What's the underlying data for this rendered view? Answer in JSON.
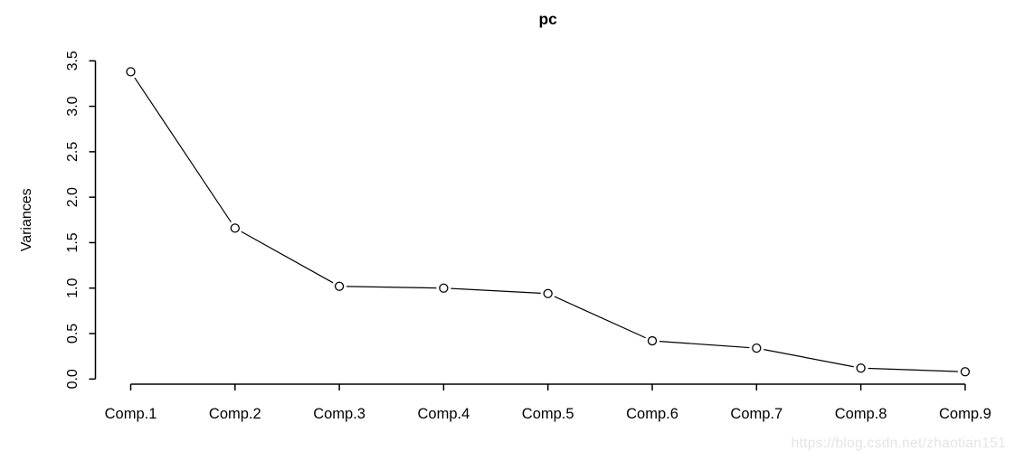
{
  "page": {
    "title": "pc"
  },
  "watermark": {
    "text": "https://blog.csdn.net/zhaotian151",
    "color": "#e4e4e6"
  },
  "chart_data": {
    "type": "line",
    "title": "pc",
    "xlabel": "",
    "ylabel": "Variances",
    "categories": [
      "Comp.1",
      "Comp.2",
      "Comp.3",
      "Comp.4",
      "Comp.5",
      "Comp.6",
      "Comp.7",
      "Comp.8",
      "Comp.9"
    ],
    "values": [
      3.38,
      1.66,
      1.02,
      1.0,
      0.94,
      0.42,
      0.34,
      0.12,
      0.08
    ],
    "ylim": [
      0,
      3.5
    ],
    "yticks": [
      0.0,
      0.5,
      1.0,
      1.5,
      2.0,
      2.5,
      3.0,
      3.5
    ],
    "grid": false,
    "legend": "none",
    "marker": "open-circle",
    "line_color": "#000000",
    "axis_color": "#000000",
    "marker_fill": "#ffffff",
    "text_color": "#000000",
    "background": "#ffffff"
  }
}
